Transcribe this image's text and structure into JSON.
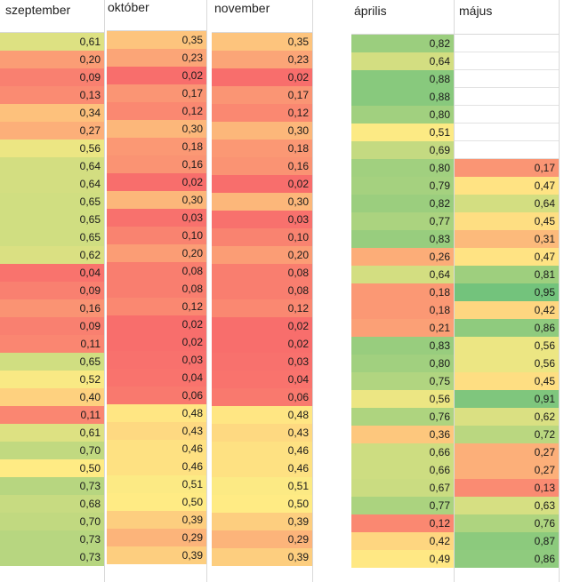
{
  "columns": [
    {
      "header": "szeptember",
      "values": [
        "0,61",
        "0,20",
        "0,09",
        "0,13",
        "0,34",
        "0,27",
        "0,56",
        "0,64",
        "0,64",
        "0,65",
        "0,65",
        "0,65",
        "0,62",
        "0,04",
        "0,09",
        "0,16",
        "0,09",
        "0,11",
        "0,65",
        "0,52",
        "0,40",
        "0,11",
        "0,61",
        "0,70",
        "0,50",
        "0,73",
        "0,68",
        "0,70",
        "0,73",
        "0,73"
      ]
    },
    {
      "header": "október",
      "values": [
        "0,35",
        "0,23",
        "0,02",
        "0,17",
        "0,12",
        "0,30",
        "0,18",
        "0,16",
        "0,02",
        "0,30",
        "0,03",
        "0,10",
        "0,20",
        "0,08",
        "0,08",
        "0,12",
        "0,02",
        "0,02",
        "0,03",
        "0,04",
        "0,06",
        "0,48",
        "0,43",
        "0,46",
        "0,46",
        "0,51",
        "0,50",
        "0,39",
        "0,29",
        "0,39"
      ]
    },
    {
      "header": "november",
      "values": [
        "0,35",
        "0,23",
        "0,02",
        "0,17",
        "0,12",
        "0,30",
        "0,18",
        "0,16",
        "0,02",
        "0,30",
        "0,03",
        "0,10",
        "0,20",
        "0,08",
        "0,08",
        "0,12",
        "0,02",
        "0,02",
        "0,03",
        "0,04",
        "0,06",
        "0,48",
        "0,43",
        "0,46",
        "0,46",
        "0,51",
        "0,50",
        "0,39",
        "0,29",
        "0,39"
      ]
    },
    {
      "header": "április",
      "values": [
        "0,82",
        "0,64",
        "0,88",
        "0,88",
        "0,80",
        "0,51",
        "0,69",
        "0,80",
        "0,79",
        "0,82",
        "0,77",
        "0,83",
        "0,26",
        "0,64",
        "0,18",
        "0,18",
        "0,21",
        "0,83",
        "0,80",
        "0,75",
        "0,56",
        "0,76",
        "0,36",
        "0,66",
        "0,66",
        "0,67",
        "0,77",
        "0,12",
        "0,42",
        "0,49"
      ]
    },
    {
      "header": "május",
      "values": [
        "",
        "",
        "",
        "",
        "",
        "",
        "",
        "0,17",
        "0,47",
        "0,64",
        "0,45",
        "0,31",
        "0,47",
        "0,81",
        "0,95",
        "0,42",
        "0,86",
        "0,56",
        "0,56",
        "0,45",
        "0,91",
        "0,62",
        "0,72",
        "0,27",
        "0,27",
        "0,13",
        "0,63",
        "0,76",
        "0,87",
        "0,86"
      ]
    }
  ],
  "scale_colors": {
    "low": "#f8696b",
    "mid": "#ffeb84",
    "high": "#63be7b"
  }
}
